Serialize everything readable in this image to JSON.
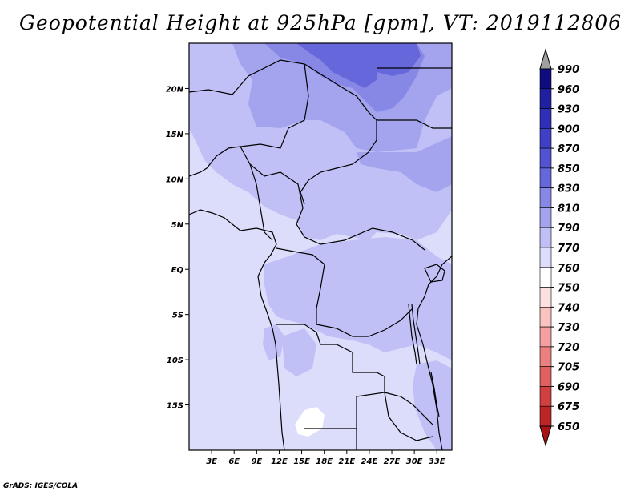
{
  "title": "Geopotential Height at 925hPa [gpm], VT: 2019112806",
  "credit": "GrADS: IGES/COLA",
  "map": {
    "lon_range": [
      0,
      35
    ],
    "lat_range": [
      -20,
      25
    ],
    "lon_ticks": [
      {
        "lon": 3,
        "label": "3E"
      },
      {
        "lon": 6,
        "label": "6E"
      },
      {
        "lon": 9,
        "label": "9E"
      },
      {
        "lon": 12,
        "label": "12E"
      },
      {
        "lon": 15,
        "label": "15E"
      },
      {
        "lon": 18,
        "label": "18E"
      },
      {
        "lon": 21,
        "label": "21E"
      },
      {
        "lon": 24,
        "label": "24E"
      },
      {
        "lon": 27,
        "label": "27E"
      },
      {
        "lon": 30,
        "label": "30E"
      },
      {
        "lon": 33,
        "label": "33E"
      }
    ],
    "lat_ticks": [
      {
        "lat": 20,
        "label": "20N"
      },
      {
        "lat": 15,
        "label": "15N"
      },
      {
        "lat": 10,
        "label": "10N"
      },
      {
        "lat": 5,
        "label": "5N"
      },
      {
        "lat": 0,
        "label": "EQ"
      },
      {
        "lat": -5,
        "label": "5S"
      },
      {
        "lat": -10,
        "label": "10S"
      },
      {
        "lat": -15,
        "label": "15S"
      }
    ]
  },
  "colorbar": {
    "levels": [
      {
        "label": "990",
        "color": "#0d0d80"
      },
      {
        "label": "960",
        "color": "#1f1fa0"
      },
      {
        "label": "930",
        "color": "#2e2eb8"
      },
      {
        "label": "900",
        "color": "#3f3fc8"
      },
      {
        "label": "870",
        "color": "#5252d2"
      },
      {
        "label": "850",
        "color": "#6767dc"
      },
      {
        "label": "830",
        "color": "#8787e6"
      },
      {
        "label": "810",
        "color": "#a3a3ee"
      },
      {
        "label": "790",
        "color": "#c0c0f6"
      },
      {
        "label": "770",
        "color": "#dcdcfb"
      },
      {
        "label": "760",
        "color": "#ffffff"
      },
      {
        "label": "750",
        "color": "#fde0e0"
      },
      {
        "label": "740",
        "color": "#fbc2c2"
      },
      {
        "label": "730",
        "color": "#f4a0a0"
      },
      {
        "label": "720",
        "color": "#ec8080"
      },
      {
        "label": "705",
        "color": "#e06060"
      },
      {
        "label": "690",
        "color": "#d04040"
      },
      {
        "label": "675",
        "color": "#bb2525"
      },
      {
        "label": "650",
        "color": "#a81414"
      }
    ],
    "over_color": "#a0a0a0",
    "under_color": "#a81414"
  },
  "fill_colors": {
    "c770": "#dcdcfb",
    "c790": "#c0c0f6",
    "c810": "#a3a3ee",
    "c830": "#8787e6",
    "c850": "#6767dc",
    "c760": "#ffffff"
  }
}
